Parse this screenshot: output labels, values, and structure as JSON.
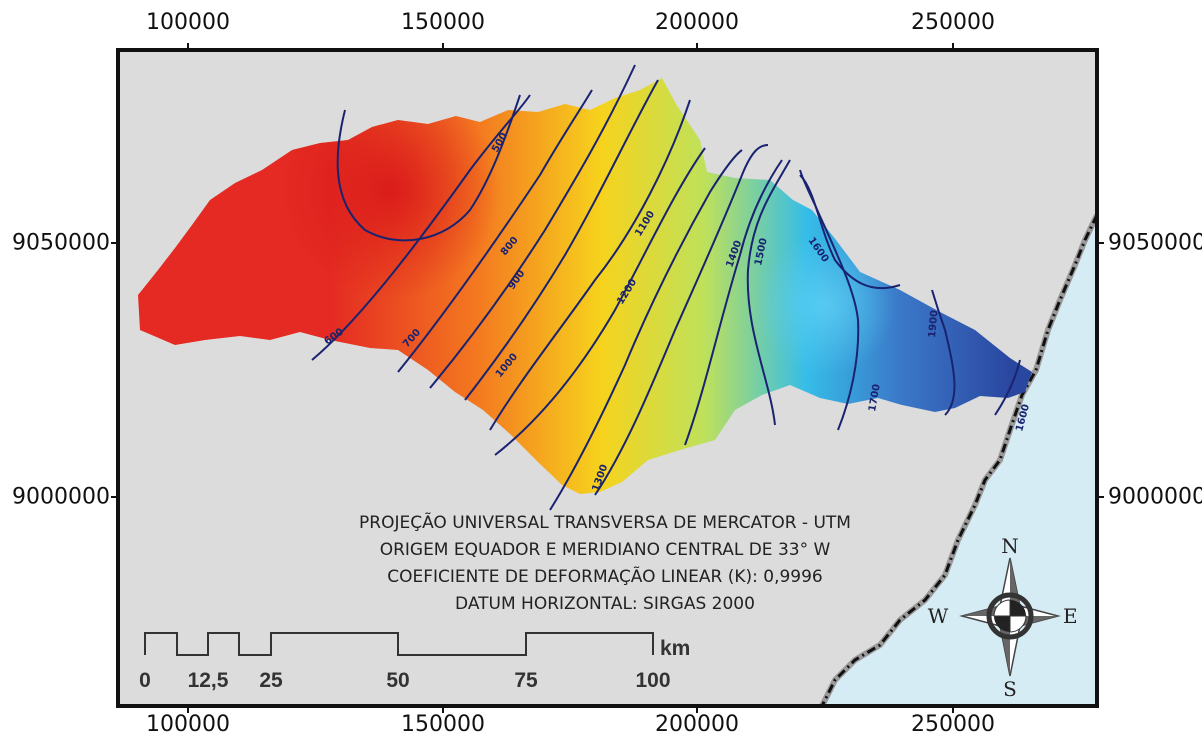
{
  "axes": {
    "x_ticks": [
      "100000",
      "150000",
      "200000",
      "250000"
    ],
    "y_ticks": [
      "9050000",
      "9000000"
    ]
  },
  "projection_info": [
    "PROJEÇÃO UNIVERSAL TRANSVERSA DE MERCATOR - UTM",
    "ORIGEM EQUADOR E MERIDIANO CENTRAL DE 33° W",
    "COEFICIENTE DE DEFORMAÇÃO LINEAR (K): 0,9996",
    "DATUM HORIZONTAL: SIRGAS 2000"
  ],
  "scale_bar": {
    "labels": [
      "0",
      "12,5",
      "25",
      "50",
      "75",
      "100"
    ],
    "unit": "km"
  },
  "north_arrow": {
    "n": "N",
    "s": "S",
    "e": "E",
    "w": "W"
  },
  "contours": [
    {
      "label": "500",
      "rotate": "-60"
    },
    {
      "label": "600",
      "rotate": "-35"
    },
    {
      "label": "700",
      "rotate": "-48"
    },
    {
      "label": "800",
      "rotate": "-50"
    },
    {
      "label": "900",
      "rotate": "-55"
    },
    {
      "label": "1000",
      "rotate": "-50"
    },
    {
      "label": "1100",
      "rotate": "-58"
    },
    {
      "label": "1200",
      "rotate": "-58"
    },
    {
      "label": "1300",
      "rotate": "-70"
    },
    {
      "label": "1400",
      "rotate": "-70"
    },
    {
      "label": "1500",
      "rotate": "-78"
    },
    {
      "label": "1600",
      "rotate": "55"
    },
    {
      "label": "1700",
      "rotate": "-80"
    },
    {
      "label": "1900",
      "rotate": "-85"
    },
    {
      "label": "1600",
      "rotate": "-75"
    }
  ],
  "colors": {
    "background": "#dcdcdc",
    "ocean": "#d6ecf4",
    "contour": "#1a2370",
    "ramp": [
      "#e42a22",
      "#f47a20",
      "#f6d31d",
      "#bfe15a",
      "#36bde8",
      "#3b78c8",
      "#2a47a0"
    ]
  }
}
